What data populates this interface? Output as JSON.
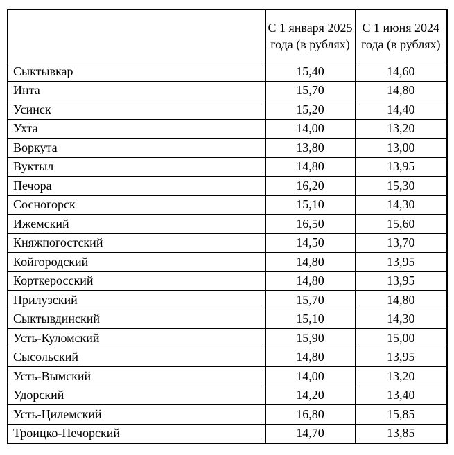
{
  "table": {
    "columns": [
      {
        "label": ""
      },
      {
        "label": "С 1 января 2025 года (в рублях)"
      },
      {
        "label": "С 1 июня 2024 года (в рублях)"
      }
    ],
    "rows": [
      {
        "name": "Сыктывкар",
        "price_jan_2025": "15,40",
        "price_jun_2024": "14,60"
      },
      {
        "name": "Инта",
        "price_jan_2025": "15,70",
        "price_jun_2024": "14,80"
      },
      {
        "name": "Усинск",
        "price_jan_2025": "15,20",
        "price_jun_2024": "14,40"
      },
      {
        "name": "Ухта",
        "price_jan_2025": "14,00",
        "price_jun_2024": "13,20"
      },
      {
        "name": "Воркута",
        "price_jan_2025": "13,80",
        "price_jun_2024": "13,00"
      },
      {
        "name": "Вуктыл",
        "price_jan_2025": "14,80",
        "price_jun_2024": "13,95"
      },
      {
        "name": "Печора",
        "price_jan_2025": "16,20",
        "price_jun_2024": "15,30"
      },
      {
        "name": "Сосногорск",
        "price_jan_2025": "15,10",
        "price_jun_2024": "14,30"
      },
      {
        "name": "Ижемский",
        "price_jan_2025": "16,50",
        "price_jun_2024": "15,60"
      },
      {
        "name": "Княжпогостский",
        "price_jan_2025": "14,50",
        "price_jun_2024": "13,70"
      },
      {
        "name": "Койгородский",
        "price_jan_2025": "14,80",
        "price_jun_2024": "13,95"
      },
      {
        "name": "Корткеросский",
        "price_jan_2025": "14,80",
        "price_jun_2024": "13,95"
      },
      {
        "name": "Прилузский",
        "price_jan_2025": "15,70",
        "price_jun_2024": "14,80"
      },
      {
        "name": "Сыктывдинский",
        "price_jan_2025": "15,10",
        "price_jun_2024": "14,30"
      },
      {
        "name": "Усть-Куломский",
        "price_jan_2025": "15,90",
        "price_jun_2024": "15,00"
      },
      {
        "name": "Сысольский",
        "price_jan_2025": "14,80",
        "price_jun_2024": "13,95"
      },
      {
        "name": "Усть-Вымский",
        "price_jan_2025": "14,00",
        "price_jun_2024": "13,20"
      },
      {
        "name": "Удорский",
        "price_jan_2025": "14,20",
        "price_jun_2024": "13,40"
      },
      {
        "name": "Усть-Цилемский",
        "price_jan_2025": "16,80",
        "price_jun_2024": "15,85"
      },
      {
        "name": "Троицко-Печорский",
        "price_jan_2025": "14,70",
        "price_jun_2024": "13,85"
      }
    ],
    "colors": {
      "border": "#000000",
      "text": "#000000",
      "background": "#ffffff"
    }
  }
}
